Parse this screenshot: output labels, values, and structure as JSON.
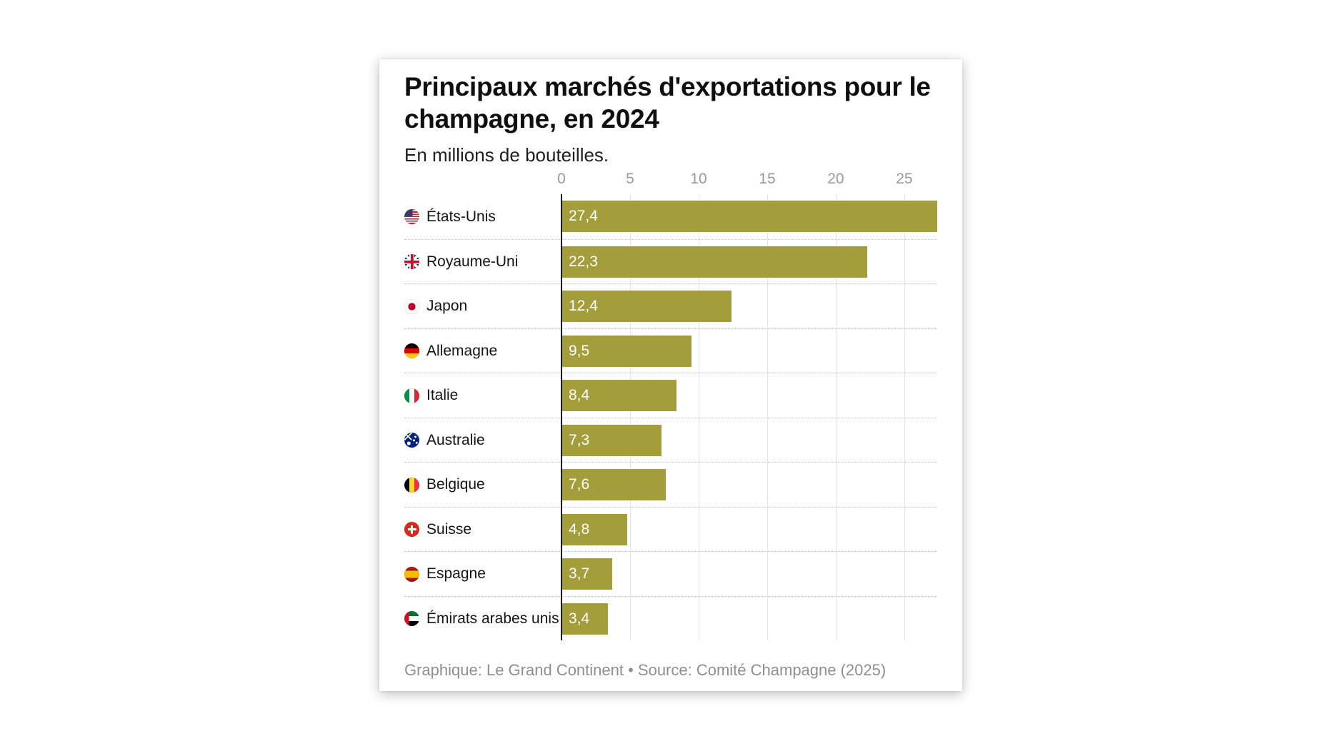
{
  "header": {
    "title": "Principaux marchés d'exportations pour le champagne, en 2024",
    "title_line1": "Principaux marchés d'exportations pour le",
    "title_line2": "champagne, en 2024",
    "subtitle": "En millions de bouteilles."
  },
  "footer": {
    "caption": "Graphique: Le Grand Continent • Source: Comité Champagne (2025)"
  },
  "chart_data": {
    "type": "bar",
    "orientation": "horizontal",
    "title": "Principaux marchés d'exportations pour le champagne, en 2024",
    "subtitle": "En millions de bouteilles.",
    "unit": "millions de bouteilles",
    "categories": [
      "États-Unis",
      "Royaume-Uni",
      "Japon",
      "Allemagne",
      "Italie",
      "Australie",
      "Belgique",
      "Suisse",
      "Espagne",
      "Émirats arabes unis"
    ],
    "values": [
      27.4,
      22.3,
      12.4,
      9.5,
      8.4,
      7.3,
      7.6,
      4.8,
      3.7,
      3.4
    ],
    "value_labels": [
      "27,4",
      "22,3",
      "12,4",
      "9,5",
      "8,4",
      "7,3",
      "7,6",
      "4,8",
      "3,7",
      "3,4"
    ],
    "flags": [
      "us",
      "gb",
      "jp",
      "de",
      "it",
      "au",
      "be",
      "ch",
      "es",
      "ae"
    ],
    "x_ticks": [
      0,
      5,
      10,
      15,
      20,
      25
    ],
    "xlim": [
      0,
      27.4
    ],
    "grid": "vertical gridlines at x ticks, dotted horizontal row separators",
    "legend": "none",
    "bar_color": "#a39d3b",
    "value_text_color": "#ffffff",
    "tick_label_color": "#9a9a9a",
    "axis_line_color": "#1a1a1a",
    "source": "Graphique: Le Grand Continent • Source: Comité Champagne (2025)"
  }
}
